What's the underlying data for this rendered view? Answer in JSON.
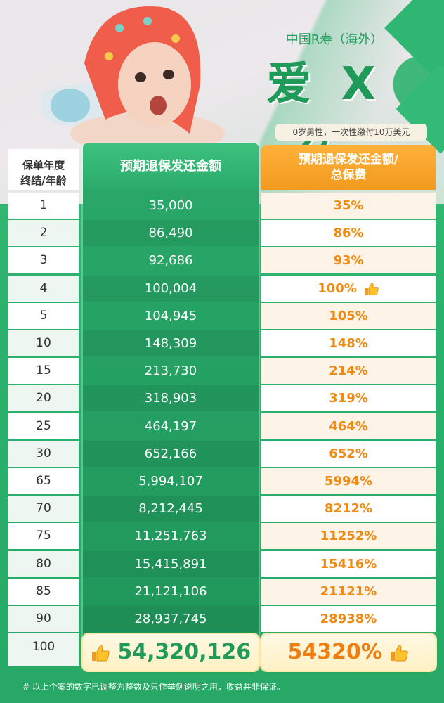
{
  "header": {
    "brand": "中国R寿（海外）",
    "product": "爱 X 久",
    "subtitle": "0岁男性，一次性缴付10万美元"
  },
  "table": {
    "col_age_label_1": "保单年度",
    "col_age_label_2": "终结/年龄",
    "col_amount_label": "预期退保发还金额",
    "col_ratio_label_1": "预期退保发还金额/",
    "col_ratio_label_2": "总保费",
    "rows": [
      {
        "age": "1",
        "amount": "35,000",
        "ratio": "35%"
      },
      {
        "age": "2",
        "amount": "86,490",
        "ratio": "86%"
      },
      {
        "age": "3",
        "amount": "92,686",
        "ratio": "93%"
      },
      {
        "age": "4",
        "amount": "100,004",
        "ratio": "100%"
      },
      {
        "age": "5",
        "amount": "104,945",
        "ratio": "105%"
      },
      {
        "age": "10",
        "amount": "148,309",
        "ratio": "148%"
      },
      {
        "age": "15",
        "amount": "213,730",
        "ratio": "214%"
      },
      {
        "age": "20",
        "amount": "318,903",
        "ratio": "319%"
      },
      {
        "age": "25",
        "amount": "464,197",
        "ratio": "464%"
      },
      {
        "age": "30",
        "amount": "652,166",
        "ratio": "652%"
      },
      {
        "age": "65",
        "amount": "5,994,107",
        "ratio": "5994%"
      },
      {
        "age": "70",
        "amount": "8,212,445",
        "ratio": "8212%"
      },
      {
        "age": "75",
        "amount": "11,251,763",
        "ratio": "11252%"
      },
      {
        "age": "80",
        "amount": "15,415,891",
        "ratio": "15416%"
      },
      {
        "age": "85",
        "amount": "21,121,106",
        "ratio": "21121%"
      },
      {
        "age": "90",
        "amount": "28,937,745",
        "ratio": "28938%"
      }
    ],
    "final": {
      "age": "100",
      "amount": "54,320,126",
      "ratio": "54320%"
    }
  },
  "footnote": "# 以上个案的数字已调整为整数及只作举例说明之用，收益并非保证。",
  "colors": {
    "green": "#2aa86a",
    "orange": "#f29a1e",
    "accent_text": "#ef8a12"
  }
}
